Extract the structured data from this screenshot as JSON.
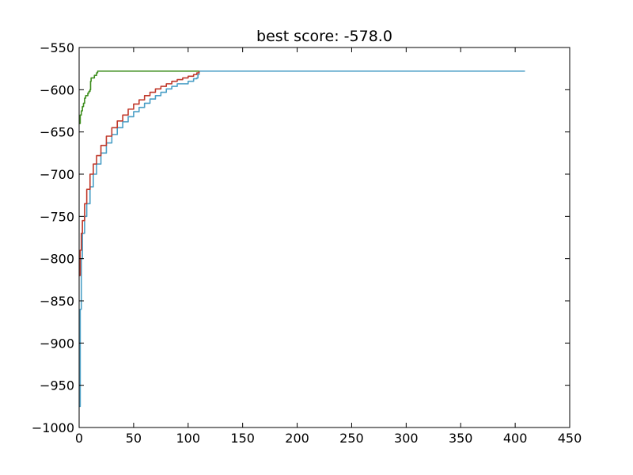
{
  "chart_data": {
    "type": "line",
    "title": "best score: -578.0",
    "xlabel": "",
    "ylabel": "",
    "xlim": [
      0,
      450
    ],
    "ylim": [
      -1000,
      -550
    ],
    "xticks": [
      0,
      50,
      100,
      150,
      200,
      250,
      300,
      350,
      400,
      450
    ],
    "yticks": [
      -550,
      -600,
      -650,
      -700,
      -750,
      -800,
      -850,
      -900,
      -950,
      -1000
    ],
    "xtick_labels": [
      "0",
      "50",
      "100",
      "150",
      "200",
      "250",
      "300",
      "350",
      "400",
      "450"
    ],
    "ytick_labels": [
      "−550",
      "−600",
      "−650",
      "−700",
      "−750",
      "−800",
      "−850",
      "−900",
      "−950",
      "−1000"
    ],
    "grid": false,
    "legend": "none",
    "series": [
      {
        "color": "#4a9fc6",
        "points": [
          [
            0,
            -975
          ],
          [
            1,
            -860
          ],
          [
            2,
            -800
          ],
          [
            3,
            -770
          ],
          [
            5,
            -750
          ],
          [
            7,
            -735
          ],
          [
            10,
            -715
          ],
          [
            13,
            -700
          ],
          [
            16,
            -688
          ],
          [
            20,
            -675
          ],
          [
            25,
            -663
          ],
          [
            30,
            -653
          ],
          [
            35,
            -645
          ],
          [
            40,
            -638
          ],
          [
            45,
            -632
          ],
          [
            50,
            -626
          ],
          [
            55,
            -621
          ],
          [
            60,
            -616
          ],
          [
            65,
            -611
          ],
          [
            70,
            -607
          ],
          [
            75,
            -603
          ],
          [
            80,
            -599
          ],
          [
            85,
            -596
          ],
          [
            90,
            -593
          ],
          [
            95,
            -593
          ],
          [
            100,
            -590
          ],
          [
            105,
            -587
          ],
          [
            108,
            -586
          ],
          [
            109,
            -582
          ],
          [
            110,
            -578
          ],
          [
            409,
            -578
          ]
        ]
      },
      {
        "color": "#c0392b",
        "points": [
          [
            0,
            -820
          ],
          [
            1,
            -790
          ],
          [
            2,
            -770
          ],
          [
            3,
            -755
          ],
          [
            5,
            -735
          ],
          [
            7,
            -718
          ],
          [
            10,
            -700
          ],
          [
            13,
            -688
          ],
          [
            16,
            -678
          ],
          [
            20,
            -666
          ],
          [
            25,
            -655
          ],
          [
            30,
            -645
          ],
          [
            35,
            -637
          ],
          [
            40,
            -630
          ],
          [
            45,
            -623
          ],
          [
            50,
            -617
          ],
          [
            55,
            -612
          ],
          [
            60,
            -607
          ],
          [
            65,
            -603
          ],
          [
            70,
            -599
          ],
          [
            75,
            -596
          ],
          [
            80,
            -593
          ],
          [
            85,
            -590
          ],
          [
            90,
            -588
          ],
          [
            95,
            -586
          ],
          [
            100,
            -584
          ],
          [
            105,
            -582
          ],
          [
            108,
            -580
          ],
          [
            110,
            -578
          ]
        ]
      },
      {
        "color": "#3e8e1e",
        "points": [
          [
            0,
            -640
          ],
          [
            1,
            -630
          ],
          [
            2,
            -625
          ],
          [
            3,
            -620
          ],
          [
            4,
            -616
          ],
          [
            5,
            -610
          ],
          [
            6,
            -607
          ],
          [
            8,
            -604
          ],
          [
            9,
            -602
          ],
          [
            10,
            -600
          ],
          [
            10.5,
            -590
          ],
          [
            11,
            -586
          ],
          [
            13,
            -586
          ],
          [
            14,
            -583
          ],
          [
            15,
            -583
          ],
          [
            16,
            -580
          ],
          [
            17,
            -578
          ],
          [
            110,
            -578
          ]
        ]
      }
    ]
  }
}
